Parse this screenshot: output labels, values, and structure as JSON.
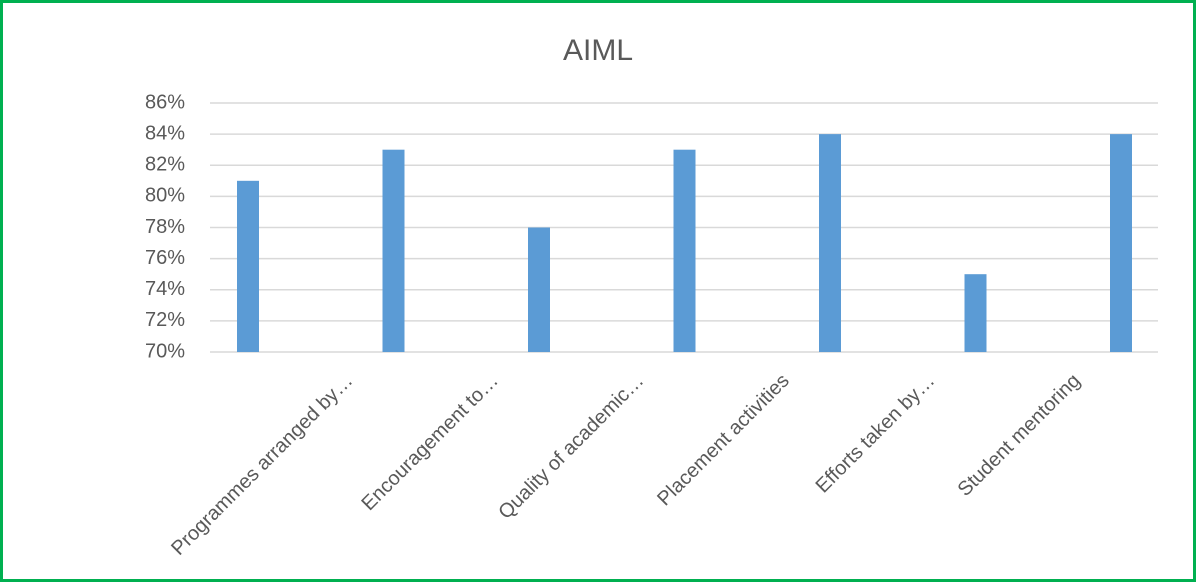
{
  "chart_data": {
    "type": "bar",
    "title": "AIML",
    "categories": [
      "Programmes arranged by…",
      "Encouragement to…",
      "Quality of academic…",
      "Placement activities",
      "Efforts taken by…",
      "Student mentoring",
      null
    ],
    "values": [
      81,
      83,
      78,
      83,
      84,
      75,
      84
    ],
    "color": "#5b9bd5",
    "ylim": [
      70,
      86
    ],
    "yticks": [
      {
        "value": 70,
        "label": "70%"
      },
      {
        "value": 72,
        "label": "72%"
      },
      {
        "value": 74,
        "label": "74%"
      },
      {
        "value": 76,
        "label": "76%"
      },
      {
        "value": 78,
        "label": "78%"
      },
      {
        "value": 80,
        "label": "80%"
      },
      {
        "value": 82,
        "label": "82%"
      },
      {
        "value": 84,
        "label": "84%"
      },
      {
        "value": 86,
        "label": "86%"
      }
    ],
    "grid": true
  }
}
